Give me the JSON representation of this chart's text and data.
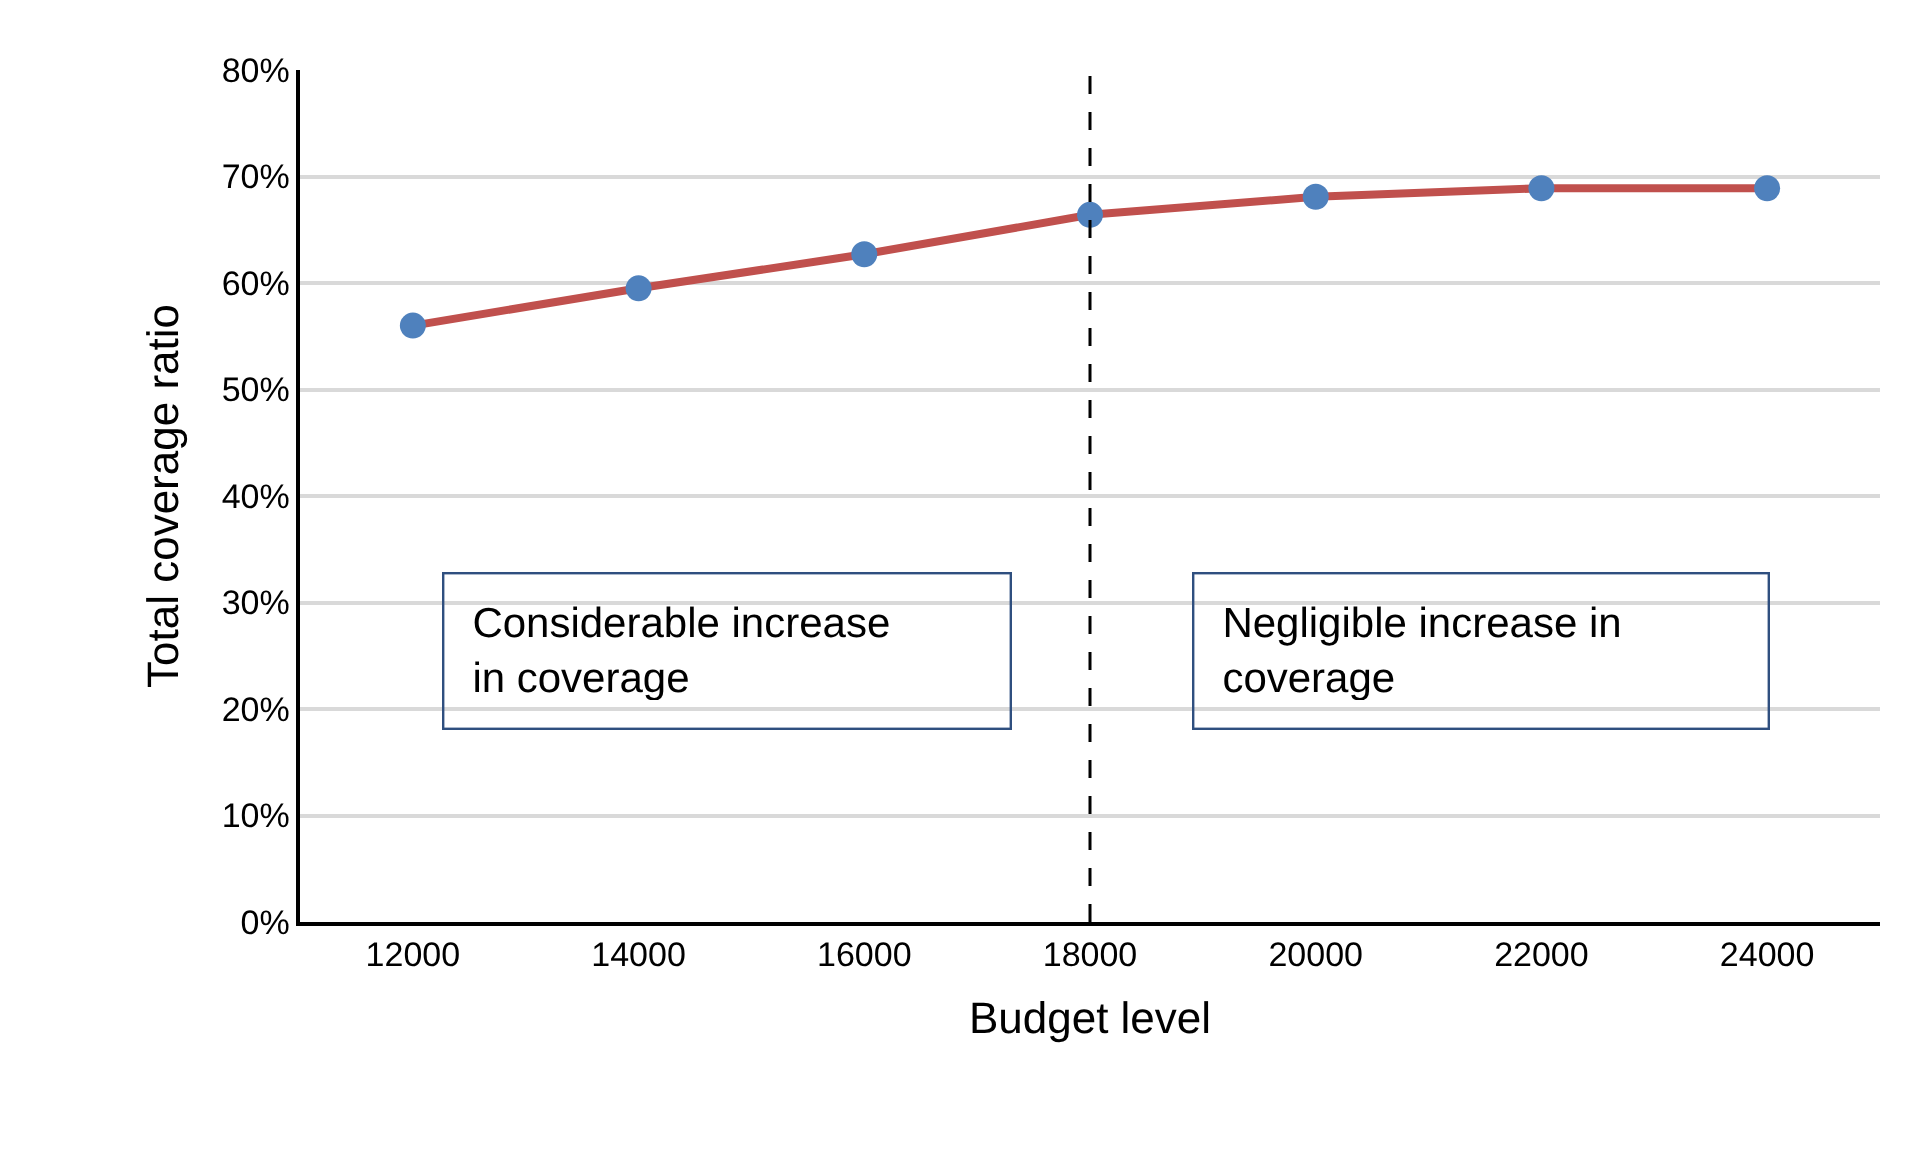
{
  "chart_data": {
    "type": "line",
    "xlabel": "Budget level",
    "ylabel": "Total coverage ratio",
    "x": [
      12000,
      14000,
      16000,
      18000,
      20000,
      22000,
      24000
    ],
    "series": [
      {
        "color": "#c0504d",
        "values": [
          56,
          59.5,
          62.7,
          66.4,
          68.1,
          68.9,
          68.9
        ]
      }
    ],
    "xlim": [
      11000,
      25000
    ],
    "xticks": [
      12000,
      14000,
      16000,
      18000,
      20000,
      22000,
      24000
    ],
    "ylim": [
      0,
      80
    ],
    "yticks": [
      {
        "value": 0,
        "label": "0%"
      },
      {
        "value": 10,
        "label": "10%"
      },
      {
        "value": 20,
        "label": "20%"
      },
      {
        "value": 30,
        "label": "30%"
      },
      {
        "value": 40,
        "label": "40%"
      },
      {
        "value": 50,
        "label": "50%"
      },
      {
        "value": 60,
        "label": "60%"
      },
      {
        "value": 70,
        "label": "70%"
      },
      {
        "value": 80,
        "label": "80%"
      }
    ],
    "grid": "y",
    "marker": "circle",
    "line_style": "solid",
    "ref_lines": [
      {
        "axis": "x",
        "value": 18000,
        "line_style": "dashed",
        "color": "#000000"
      }
    ],
    "annotations": [
      "Considerable increase in coverage",
      "Negligible increase in coverage"
    ]
  }
}
